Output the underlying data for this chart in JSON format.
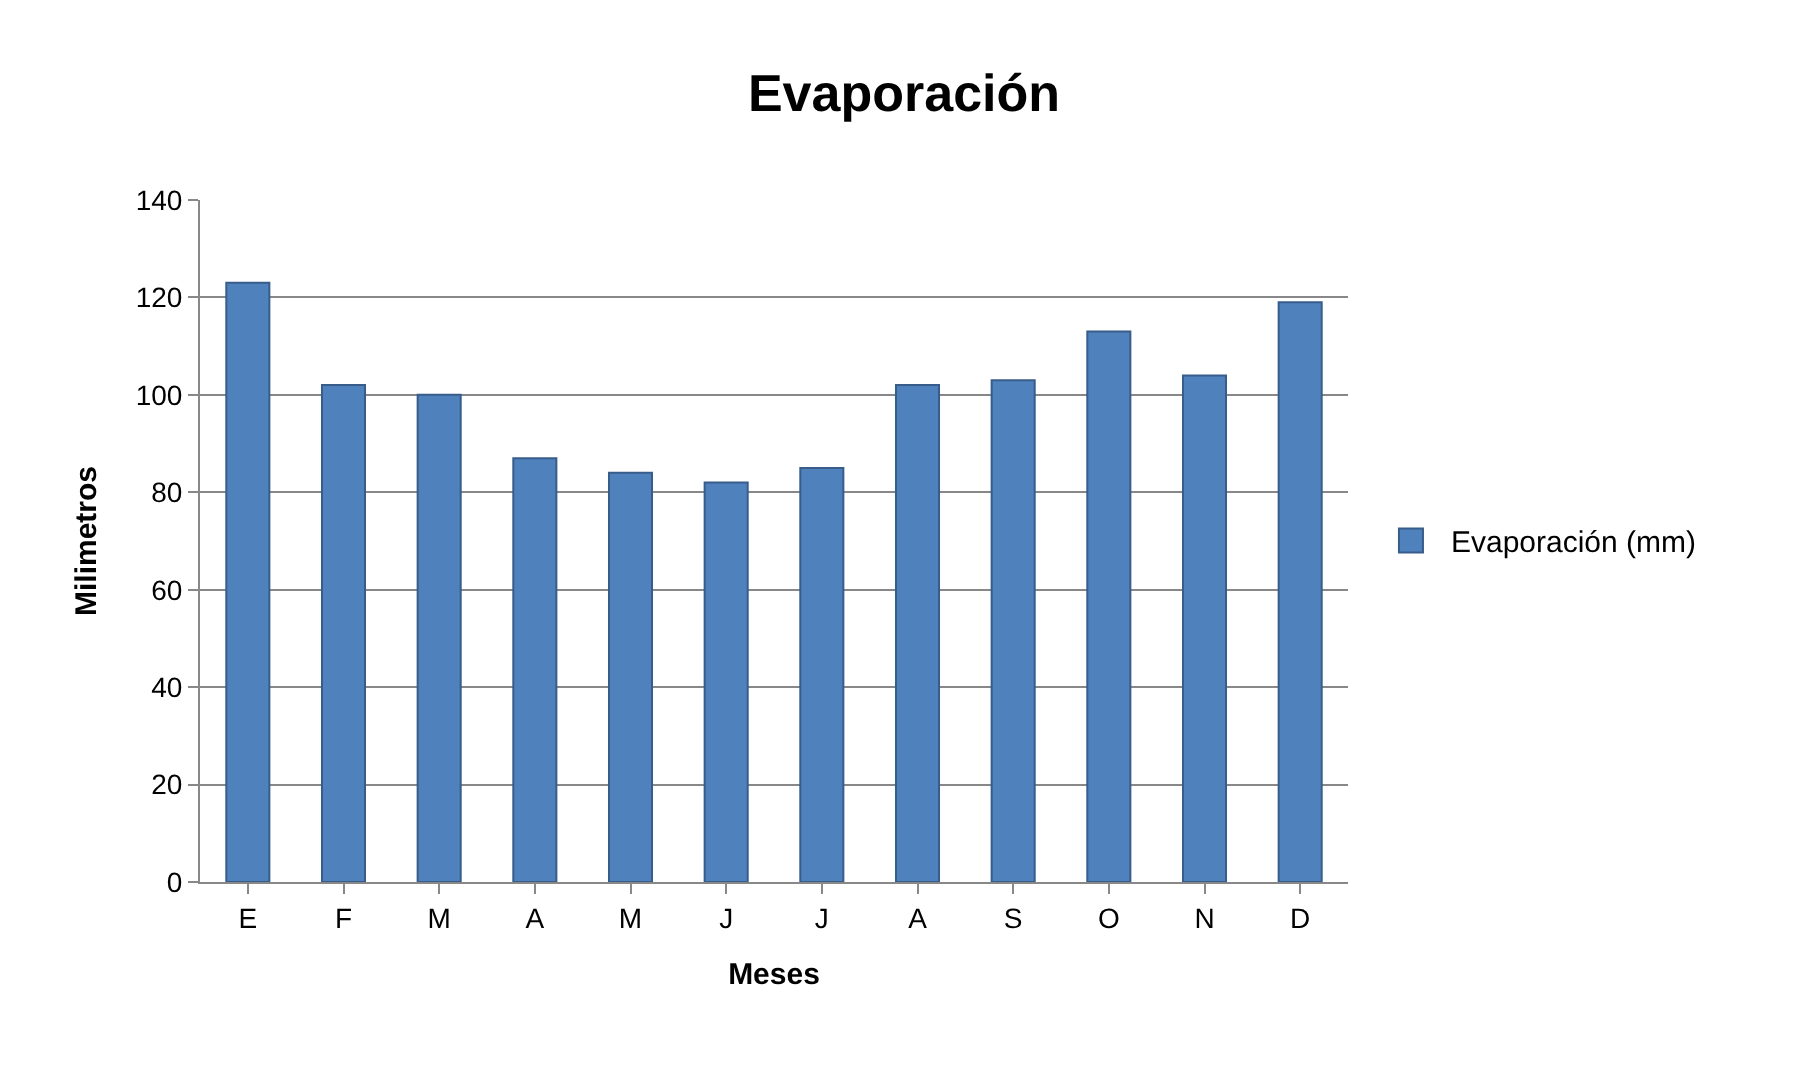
{
  "chart_data": {
    "type": "bar",
    "title": "Evaporación",
    "xlabel": "Meses",
    "ylabel": "Milimetros",
    "categories": [
      "E",
      "F",
      "M",
      "A",
      "M",
      "J",
      "J",
      "A",
      "S",
      "O",
      "N",
      "D"
    ],
    "series": [
      {
        "name": "Evaporación (mm)",
        "color": "#4f81bd",
        "values": [
          123,
          102,
          100,
          87,
          84,
          82,
          85,
          102,
          103,
          113,
          104,
          119
        ]
      }
    ],
    "ylim": [
      0,
      140
    ],
    "yticks": [
      0,
      20,
      40,
      60,
      80,
      100,
      120,
      140
    ],
    "grid": "y",
    "legend": "right"
  }
}
